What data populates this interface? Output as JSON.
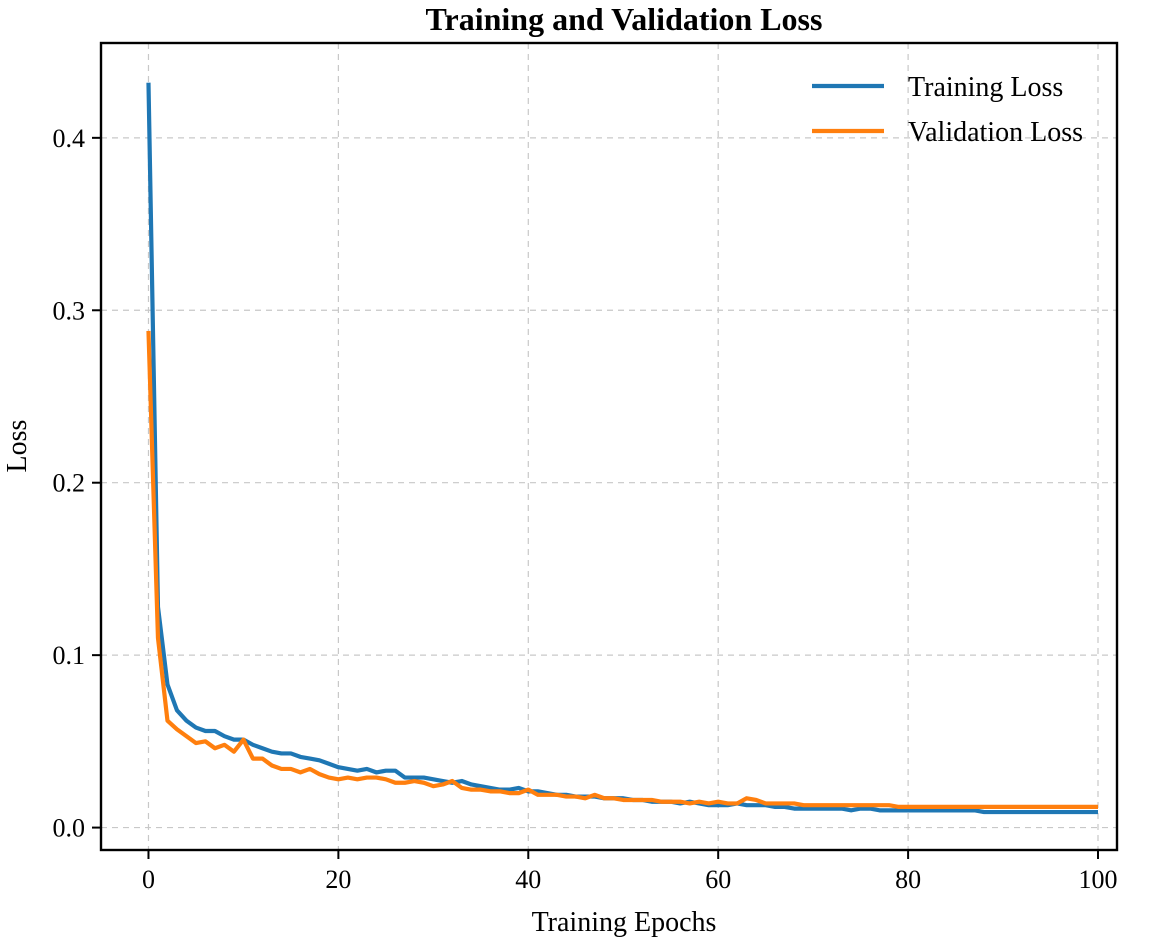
{
  "chart_data": {
    "type": "line",
    "title": "Training and Validation Loss",
    "xlabel": "Training Epochs",
    "ylabel": "Loss",
    "xlim": [
      -5,
      102
    ],
    "ylim": [
      -0.013,
      0.455
    ],
    "xticks": [
      0,
      20,
      40,
      60,
      80,
      100
    ],
    "yticks": [
      0.0,
      0.1,
      0.2,
      0.3,
      0.4
    ],
    "xtick_labels": [
      "0",
      "20",
      "40",
      "60",
      "80",
      "100"
    ],
    "ytick_labels": [
      "0.0",
      "0.1",
      "0.2",
      "0.3",
      "0.4"
    ],
    "grid": true,
    "legend_position": "top-right",
    "x": [
      0,
      1,
      2,
      3,
      4,
      5,
      6,
      7,
      8,
      9,
      10,
      11,
      12,
      13,
      14,
      15,
      16,
      17,
      18,
      19,
      20,
      21,
      22,
      23,
      24,
      25,
      26,
      27,
      28,
      29,
      30,
      31,
      32,
      33,
      34,
      35,
      36,
      37,
      38,
      39,
      40,
      41,
      42,
      43,
      44,
      45,
      46,
      47,
      48,
      49,
      50,
      51,
      52,
      53,
      54,
      55,
      56,
      57,
      58,
      59,
      60,
      61,
      62,
      63,
      64,
      65,
      66,
      67,
      68,
      69,
      70,
      71,
      72,
      73,
      74,
      75,
      76,
      77,
      78,
      79,
      80,
      81,
      82,
      83,
      84,
      85,
      86,
      87,
      88,
      89,
      90,
      91,
      92,
      93,
      94,
      95,
      96,
      97,
      98,
      99,
      100
    ],
    "series": [
      {
        "name": "Training Loss",
        "color": "#1f77b4",
        "values": [
          0.432,
          0.128,
          0.083,
          0.068,
          0.062,
          0.058,
          0.056,
          0.056,
          0.053,
          0.051,
          0.051,
          0.048,
          0.046,
          0.044,
          0.043,
          0.043,
          0.041,
          0.04,
          0.039,
          0.037,
          0.035,
          0.034,
          0.033,
          0.034,
          0.032,
          0.033,
          0.033,
          0.029,
          0.029,
          0.029,
          0.028,
          0.027,
          0.026,
          0.027,
          0.025,
          0.024,
          0.023,
          0.022,
          0.022,
          0.023,
          0.021,
          0.021,
          0.02,
          0.019,
          0.019,
          0.018,
          0.018,
          0.018,
          0.017,
          0.017,
          0.017,
          0.016,
          0.016,
          0.015,
          0.015,
          0.015,
          0.014,
          0.015,
          0.014,
          0.013,
          0.013,
          0.013,
          0.014,
          0.013,
          0.013,
          0.013,
          0.012,
          0.012,
          0.011,
          0.011,
          0.011,
          0.011,
          0.011,
          0.011,
          0.01,
          0.011,
          0.011,
          0.01,
          0.01,
          0.01,
          0.01,
          0.01,
          0.01,
          0.01,
          0.01,
          0.01,
          0.01,
          0.01,
          0.009,
          0.009,
          0.009,
          0.009,
          0.009,
          0.009,
          0.009,
          0.009,
          0.009,
          0.009,
          0.009,
          0.009,
          0.009
        ]
      },
      {
        "name": "Validation Loss",
        "color": "#ff7f0e",
        "values": [
          0.288,
          0.11,
          0.062,
          0.057,
          0.053,
          0.049,
          0.05,
          0.046,
          0.048,
          0.044,
          0.051,
          0.04,
          0.04,
          0.036,
          0.034,
          0.034,
          0.032,
          0.034,
          0.031,
          0.029,
          0.028,
          0.029,
          0.028,
          0.029,
          0.029,
          0.028,
          0.026,
          0.026,
          0.027,
          0.026,
          0.024,
          0.025,
          0.027,
          0.023,
          0.022,
          0.022,
          0.021,
          0.021,
          0.02,
          0.02,
          0.022,
          0.019,
          0.019,
          0.019,
          0.018,
          0.018,
          0.017,
          0.019,
          0.017,
          0.017,
          0.016,
          0.016,
          0.016,
          0.016,
          0.015,
          0.015,
          0.015,
          0.014,
          0.015,
          0.014,
          0.015,
          0.014,
          0.014,
          0.017,
          0.016,
          0.014,
          0.014,
          0.014,
          0.014,
          0.013,
          0.013,
          0.013,
          0.013,
          0.013,
          0.013,
          0.013,
          0.013,
          0.013,
          0.013,
          0.012,
          0.012,
          0.012,
          0.012,
          0.012,
          0.012,
          0.012,
          0.012,
          0.012,
          0.012,
          0.012,
          0.012,
          0.012,
          0.012,
          0.012,
          0.012,
          0.012,
          0.012,
          0.012,
          0.012,
          0.012,
          0.012
        ]
      }
    ]
  }
}
